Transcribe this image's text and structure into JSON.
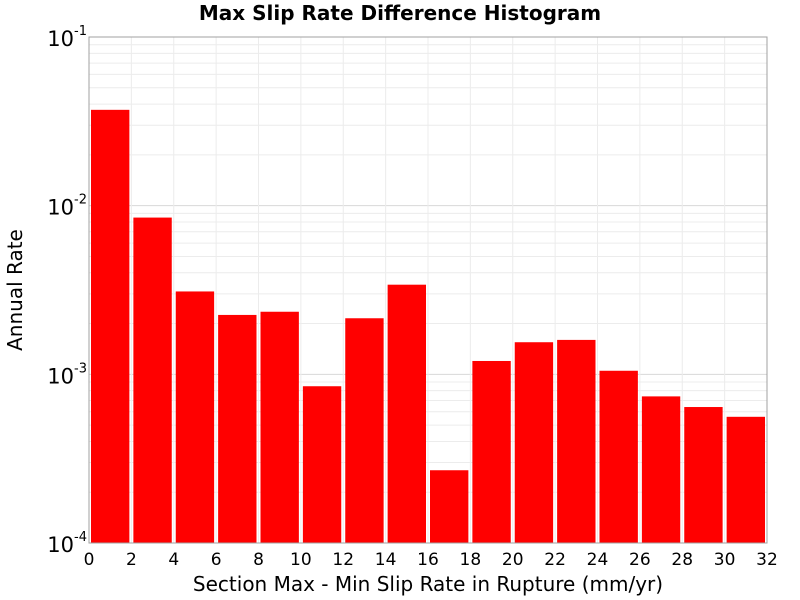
{
  "chart_data": {
    "type": "bar",
    "title": "Max Slip Rate Difference Histogram",
    "xlabel": "Section Max - Min Slip Rate in Rupture (mm/yr)",
    "ylabel": "Annual Rate",
    "xlim": [
      0,
      32
    ],
    "ylim": [
      0.0001,
      0.1
    ],
    "yscale": "log",
    "bar_color": "#ff0000",
    "bin_width": 2,
    "x_ticks": [
      "0",
      "2",
      "4",
      "6",
      "8",
      "10",
      "12",
      "14",
      "16",
      "18",
      "20",
      "22",
      "24",
      "26",
      "28",
      "30",
      "32"
    ],
    "y_ticks": [
      {
        "base": "10",
        "exp": "-1",
        "value": 0.1
      },
      {
        "base": "10",
        "exp": "-2",
        "value": 0.01
      },
      {
        "base": "10",
        "exp": "-3",
        "value": 0.001
      },
      {
        "base": "10",
        "exp": "-4",
        "value": 0.0001
      }
    ],
    "categories": [
      "1",
      "3",
      "5",
      "7",
      "9",
      "11",
      "13",
      "15",
      "17",
      "19",
      "21",
      "23",
      "25",
      "27",
      "29",
      "31"
    ],
    "x": [
      1,
      3,
      5,
      7,
      9,
      11,
      13,
      15,
      17,
      19,
      21,
      23,
      25,
      27,
      29,
      31
    ],
    "values": [
      0.037,
      0.0085,
      0.0031,
      0.00225,
      0.00235,
      0.00085,
      0.00215,
      0.0034,
      0.00027,
      0.0012,
      0.00155,
      0.0016,
      0.00105,
      0.00074,
      0.00064,
      0.00056
    ],
    "grid": true
  }
}
